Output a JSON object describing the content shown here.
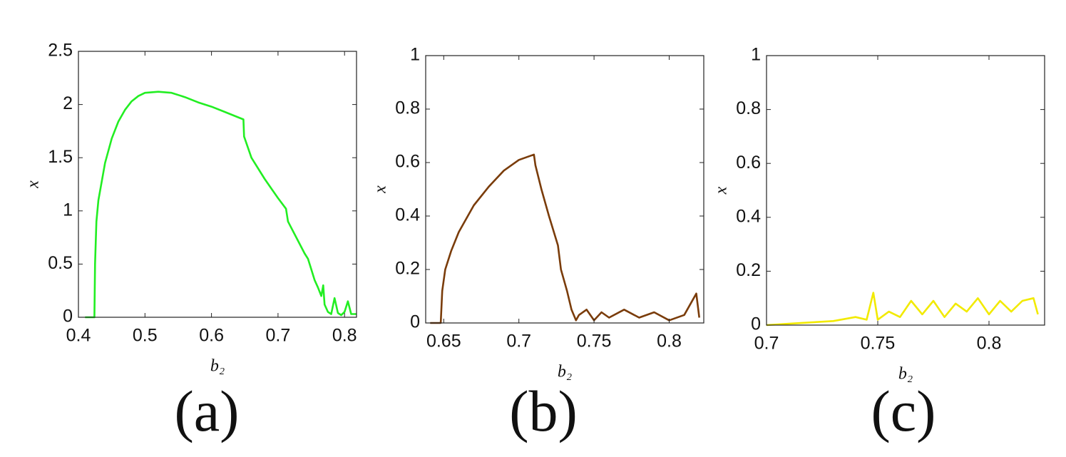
{
  "chart_data": [
    {
      "type": "line",
      "panel_label": "(a)",
      "xlabel": "b₂",
      "ylabel": "x",
      "color": "#22ee22",
      "xlim": [
        0.4,
        0.818
      ],
      "xticks": [
        0.4,
        0.5,
        0.6,
        0.7,
        0.8
      ],
      "ylim": [
        0,
        2.5
      ],
      "yticks": [
        0,
        0.5,
        1,
        1.5,
        2,
        2.5
      ],
      "x": [
        0.41,
        0.424,
        0.425,
        0.427,
        0.43,
        0.44,
        0.45,
        0.46,
        0.47,
        0.48,
        0.49,
        0.5,
        0.52,
        0.54,
        0.56,
        0.58,
        0.6,
        0.62,
        0.64,
        0.648,
        0.649,
        0.66,
        0.68,
        0.7,
        0.712,
        0.715,
        0.73,
        0.74,
        0.745,
        0.75,
        0.755,
        0.76,
        0.765,
        0.768,
        0.77,
        0.775,
        0.78,
        0.785,
        0.79,
        0.795,
        0.8,
        0.805,
        0.81,
        0.818
      ],
      "values": [
        0,
        0,
        0.5,
        0.9,
        1.1,
        1.45,
        1.68,
        1.84,
        1.95,
        2.03,
        2.08,
        2.11,
        2.12,
        2.11,
        2.07,
        2.02,
        1.98,
        1.93,
        1.88,
        1.86,
        1.7,
        1.5,
        1.3,
        1.12,
        1.02,
        0.9,
        0.72,
        0.6,
        0.55,
        0.45,
        0.35,
        0.28,
        0.2,
        0.3,
        0.12,
        0.05,
        0.03,
        0.18,
        0.04,
        0.02,
        0.05,
        0.15,
        0.03,
        0.03
      ]
    },
    {
      "type": "line",
      "panel_label": "(b)",
      "xlabel": "b₂",
      "ylabel": "x",
      "color": "#7a3c0a",
      "xlim": [
        0.638,
        0.823
      ],
      "xticks": [
        0.65,
        0.7,
        0.75,
        0.8
      ],
      "ylim": [
        0,
        1
      ],
      "yticks": [
        0,
        0.2,
        0.4,
        0.6,
        0.8,
        1
      ],
      "x": [
        0.641,
        0.648,
        0.649,
        0.651,
        0.655,
        0.66,
        0.67,
        0.68,
        0.69,
        0.7,
        0.71,
        0.711,
        0.715,
        0.72,
        0.726,
        0.728,
        0.732,
        0.735,
        0.738,
        0.74,
        0.745,
        0.75,
        0.755,
        0.76,
        0.77,
        0.78,
        0.79,
        0.8,
        0.81,
        0.818,
        0.82
      ],
      "values": [
        0,
        0,
        0.12,
        0.2,
        0.27,
        0.34,
        0.44,
        0.51,
        0.57,
        0.61,
        0.63,
        0.59,
        0.5,
        0.4,
        0.29,
        0.2,
        0.12,
        0.05,
        0.01,
        0.03,
        0.05,
        0.01,
        0.04,
        0.02,
        0.05,
        0.02,
        0.04,
        0.01,
        0.03,
        0.11,
        0.02
      ]
    },
    {
      "type": "line",
      "panel_label": "(c)",
      "xlabel": "b₂",
      "ylabel": "x",
      "color": "#f2ea00",
      "xlim": [
        0.7,
        0.825
      ],
      "xticks": [
        0.7,
        0.75,
        0.8
      ],
      "ylim": [
        0,
        1
      ],
      "yticks": [
        0,
        0.2,
        0.4,
        0.6,
        0.8,
        1
      ],
      "x": [
        0.7,
        0.71,
        0.72,
        0.73,
        0.74,
        0.745,
        0.748,
        0.75,
        0.755,
        0.76,
        0.765,
        0.77,
        0.775,
        0.78,
        0.785,
        0.79,
        0.795,
        0.8,
        0.805,
        0.81,
        0.815,
        0.82,
        0.822
      ],
      "values": [
        0,
        0.005,
        0.01,
        0.015,
        0.03,
        0.02,
        0.12,
        0.02,
        0.05,
        0.03,
        0.09,
        0.04,
        0.09,
        0.03,
        0.08,
        0.05,
        0.1,
        0.04,
        0.09,
        0.05,
        0.09,
        0.1,
        0.04
      ]
    }
  ]
}
